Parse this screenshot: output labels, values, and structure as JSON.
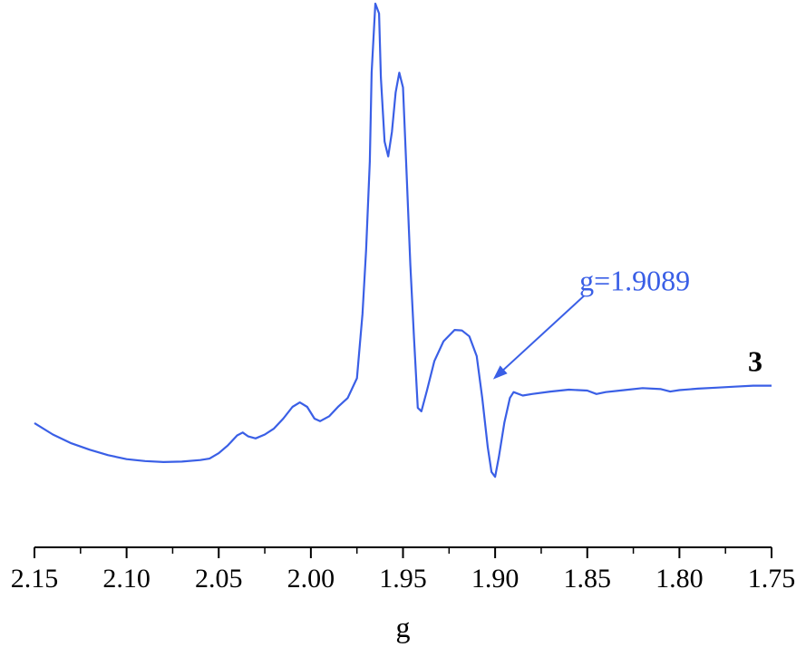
{
  "chart_data": {
    "type": "line",
    "title": "",
    "xlabel": "g",
    "ylabel": "",
    "x_reversed": true,
    "xlim": [
      2.15,
      1.75
    ],
    "ylim": [
      0,
      1
    ],
    "x_ticks": [
      "2.15",
      "2.10",
      "2.05",
      "2.00",
      "1.95",
      "1.90",
      "1.85",
      "1.80",
      "1.75"
    ],
    "x_minor_step": 0.025,
    "y_axis_visible": false,
    "grid": false,
    "series": [
      {
        "name": "3",
        "color": "#3a5fe6",
        "points": [
          [
            2.15,
            0.149
          ],
          [
            2.14,
            0.126
          ],
          [
            2.13,
            0.108
          ],
          [
            2.12,
            0.095
          ],
          [
            2.11,
            0.084
          ],
          [
            2.1,
            0.076
          ],
          [
            2.09,
            0.072
          ],
          [
            2.08,
            0.07
          ],
          [
            2.07,
            0.071
          ],
          [
            2.06,
            0.074
          ],
          [
            2.055,
            0.077
          ],
          [
            2.05,
            0.088
          ],
          [
            2.045,
            0.104
          ],
          [
            2.04,
            0.124
          ],
          [
            2.037,
            0.13
          ],
          [
            2.034,
            0.122
          ],
          [
            2.03,
            0.118
          ],
          [
            2.025,
            0.126
          ],
          [
            2.02,
            0.138
          ],
          [
            2.015,
            0.158
          ],
          [
            2.01,
            0.182
          ],
          [
            2.006,
            0.191
          ],
          [
            2.002,
            0.182
          ],
          [
            1.998,
            0.158
          ],
          [
            1.995,
            0.153
          ],
          [
            1.99,
            0.163
          ],
          [
            1.985,
            0.183
          ],
          [
            1.98,
            0.2
          ],
          [
            1.975,
            0.24
          ],
          [
            1.972,
            0.37
          ],
          [
            1.97,
            0.5
          ],
          [
            1.968,
            0.68
          ],
          [
            1.967,
            0.86
          ],
          [
            1.965,
            1.0
          ],
          [
            1.963,
            0.98
          ],
          [
            1.962,
            0.85
          ],
          [
            1.96,
            0.72
          ],
          [
            1.958,
            0.69
          ],
          [
            1.956,
            0.74
          ],
          [
            1.954,
            0.82
          ],
          [
            1.952,
            0.86
          ],
          [
            1.95,
            0.83
          ],
          [
            1.948,
            0.65
          ],
          [
            1.946,
            0.47
          ],
          [
            1.944,
            0.32
          ],
          [
            1.942,
            0.18
          ],
          [
            1.94,
            0.173
          ],
          [
            1.937,
            0.215
          ],
          [
            1.933,
            0.275
          ],
          [
            1.928,
            0.315
          ],
          [
            1.922,
            0.338
          ],
          [
            1.918,
            0.337
          ],
          [
            1.914,
            0.325
          ],
          [
            1.91,
            0.285
          ],
          [
            1.907,
            0.2
          ],
          [
            1.904,
            0.1
          ],
          [
            1.902,
            0.05
          ],
          [
            1.9,
            0.04
          ],
          [
            1.898,
            0.08
          ],
          [
            1.895,
            0.15
          ],
          [
            1.892,
            0.2
          ],
          [
            1.89,
            0.212
          ],
          [
            1.885,
            0.205
          ],
          [
            1.88,
            0.208
          ],
          [
            1.87,
            0.213
          ],
          [
            1.86,
            0.217
          ],
          [
            1.85,
            0.215
          ],
          [
            1.845,
            0.208
          ],
          [
            1.84,
            0.212
          ],
          [
            1.83,
            0.216
          ],
          [
            1.82,
            0.22
          ],
          [
            1.81,
            0.218
          ],
          [
            1.805,
            0.213
          ],
          [
            1.8,
            0.216
          ],
          [
            1.79,
            0.219
          ],
          [
            1.78,
            0.221
          ],
          [
            1.77,
            0.223
          ],
          [
            1.76,
            0.225
          ],
          [
            1.75,
            0.225
          ]
        ]
      }
    ],
    "series_label": "3",
    "annotations": [
      {
        "text": "g=1.9089",
        "points_to_x": 1.901,
        "points_to_y": 0.26,
        "color": "#3a5fe6"
      }
    ]
  }
}
